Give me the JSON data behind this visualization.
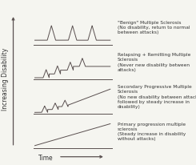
{
  "background_color": "#f5f5f0",
  "ylabel": "Increasing Disability",
  "xlabel": "Time",
  "line_color": "#5a5050",
  "labels": [
    "\"Benign\" Multiple Sclerosis\n(No disability, return to normal\nbetween attacks)",
    "Relapsing + Remitting Multiple\nSclerosis\n(Never new disability between\nattacks)",
    "Secondary Progressive Multiple\nSclerosis\n(No new disability between attacks\nfollowed by steady increase in\ndisability)",
    "Primary progression multiple\nsclerosis\n(Steady increase in disability\nwithout attacks)"
  ],
  "label_fontsize": 4.2,
  "axis_label_fontsize": 5.5
}
